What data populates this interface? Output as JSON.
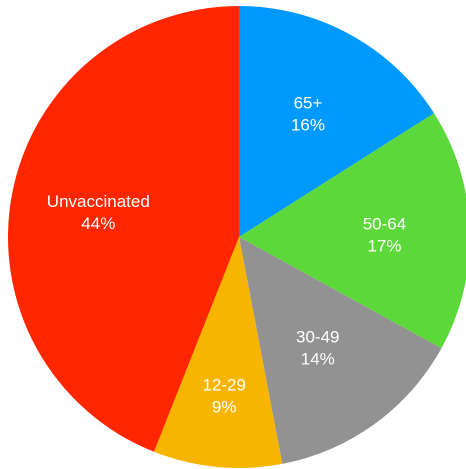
{
  "chart_data": {
    "type": "pie",
    "start": "top",
    "direction": "clockwise",
    "slices": [
      {
        "label": "65+",
        "value": 16,
        "value_label": "16%",
        "color": "#0099FF"
      },
      {
        "label": "50-64",
        "value": 17,
        "value_label": "17%",
        "color": "#5CD83A"
      },
      {
        "label": "30-49",
        "value": 14,
        "value_label": "14%",
        "color": "#929292"
      },
      {
        "label": "12-29",
        "value": 9,
        "value_label": "9%",
        "color": "#F7B500"
      },
      {
        "label": "Unvaccinated",
        "value": 44,
        "value_label": "44%",
        "color": "#FF2600"
      }
    ]
  }
}
